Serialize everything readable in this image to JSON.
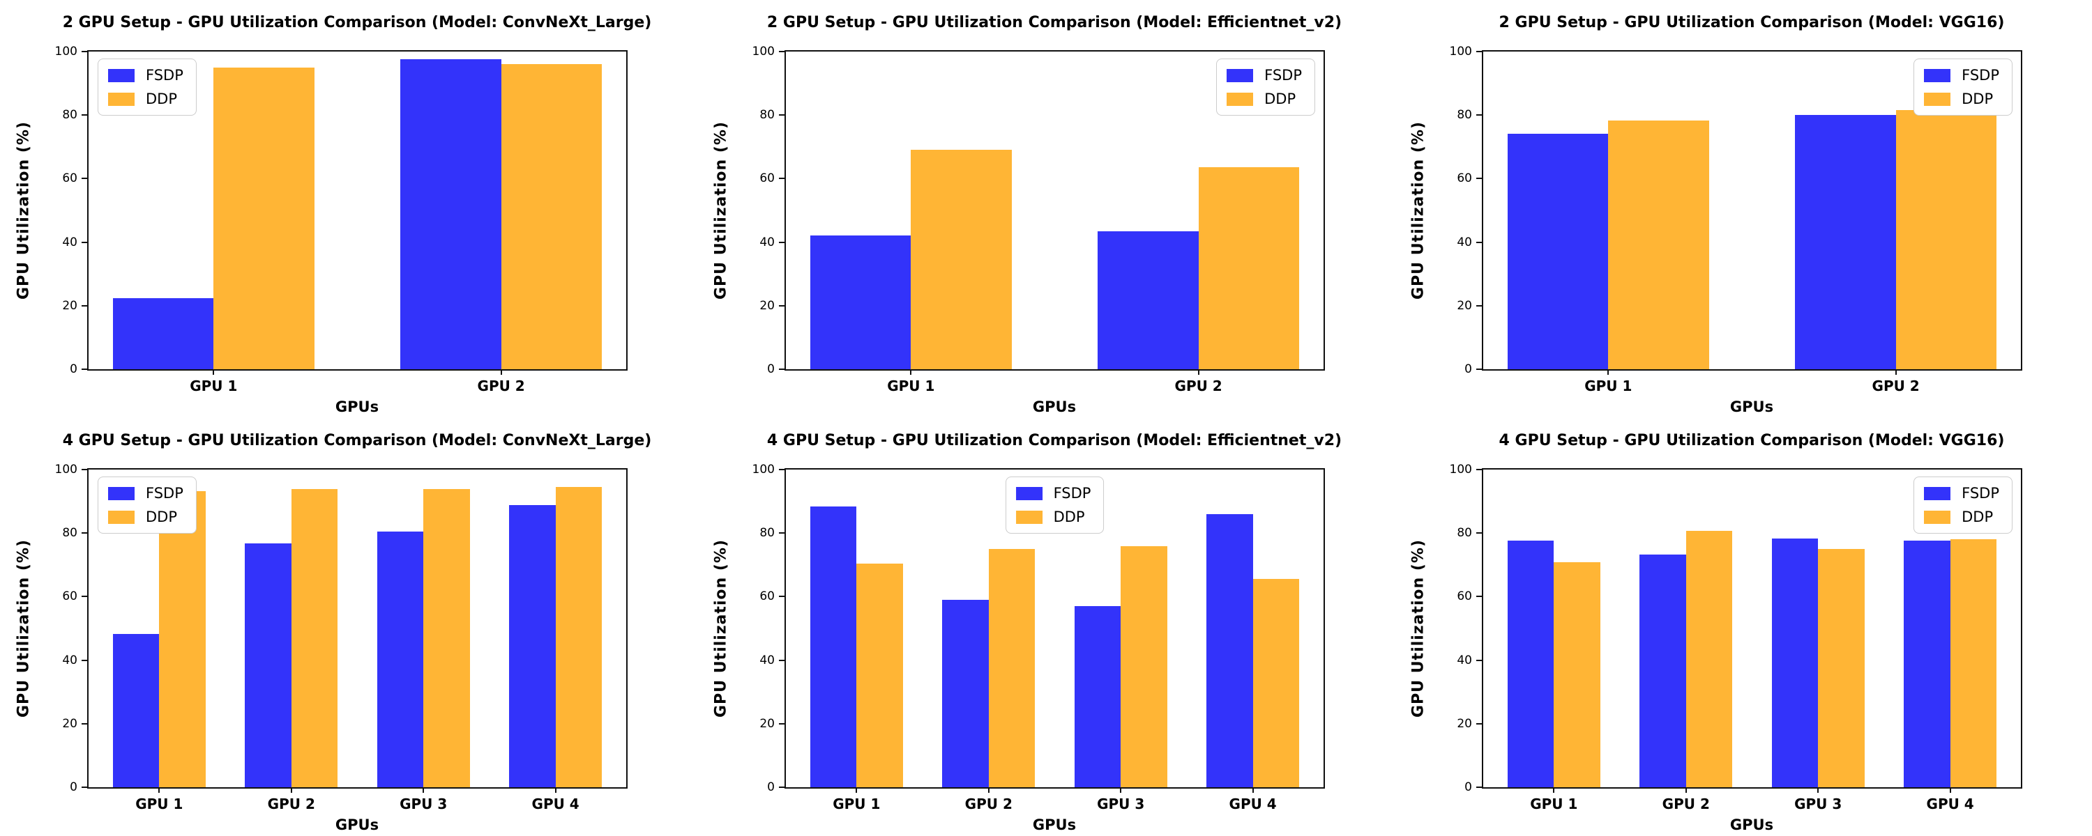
{
  "figure": {
    "background": "#ffffff",
    "axis_color": "#111111",
    "ylabel": "GPU Utilization (%)",
    "xlabel": "GPUs",
    "yticks": [
      0,
      20,
      40,
      60,
      80,
      100
    ],
    "legend_labels": [
      "FSDP",
      "DDP"
    ],
    "series_colors": {
      "FSDP": "#3333FA",
      "DDP": "#FFB535"
    }
  },
  "chart_data": [
    {
      "type": "bar",
      "title": "2 GPU Setup - GPU Utilization Comparison (Model: ConvNeXt_Large)",
      "xlabel": "GPUs",
      "ylabel": "GPU Utilization (%)",
      "ylim": [
        0,
        100
      ],
      "yticks": [
        0,
        20,
        40,
        60,
        80,
        100
      ],
      "grid": false,
      "legend_position": "upper-left",
      "categories": [
        "GPU 1",
        "GPU 2"
      ],
      "series": [
        {
          "name": "FSDP",
          "color": "#3333FA",
          "values": [
            22.3,
            97.7
          ]
        },
        {
          "name": "DDP",
          "color": "#FFB535",
          "values": [
            95.0,
            96.1
          ]
        }
      ]
    },
    {
      "type": "bar",
      "title": "2 GPU Setup - GPU Utilization Comparison (Model: Efficientnet_v2)",
      "xlabel": "GPUs",
      "ylabel": "GPU Utilization (%)",
      "ylim": [
        0,
        100
      ],
      "yticks": [
        0,
        20,
        40,
        60,
        80,
        100
      ],
      "grid": false,
      "legend_position": "upper-right",
      "categories": [
        "GPU 1",
        "GPU 2"
      ],
      "series": [
        {
          "name": "FSDP",
          "color": "#3333FA",
          "values": [
            42.0,
            43.5
          ]
        },
        {
          "name": "DDP",
          "color": "#FFB535",
          "values": [
            69.0,
            63.6
          ]
        }
      ]
    },
    {
      "type": "bar",
      "title": "2 GPU Setup - GPU Utilization Comparison (Model: VGG16)",
      "xlabel": "GPUs",
      "ylabel": "GPU Utilization (%)",
      "ylim": [
        0,
        100
      ],
      "yticks": [
        0,
        20,
        40,
        60,
        80,
        100
      ],
      "grid": false,
      "legend_position": "upper-right",
      "categories": [
        "GPU 1",
        "GPU 2"
      ],
      "series": [
        {
          "name": "FSDP",
          "color": "#3333FA",
          "values": [
            74.2,
            80.1
          ]
        },
        {
          "name": "DDP",
          "color": "#FFB535",
          "values": [
            78.2,
            81.5
          ]
        }
      ]
    },
    {
      "type": "bar",
      "title": "4 GPU Setup - GPU Utilization Comparison (Model: ConvNeXt_Large)",
      "xlabel": "GPUs",
      "ylabel": "GPU Utilization (%)",
      "ylim": [
        0,
        100
      ],
      "yticks": [
        0,
        20,
        40,
        60,
        80,
        100
      ],
      "grid": false,
      "legend_position": "upper-left",
      "categories": [
        "GPU 1",
        "GPU 2",
        "GPU 3",
        "GPU 4"
      ],
      "series": [
        {
          "name": "FSDP",
          "color": "#3333FA",
          "values": [
            48.3,
            76.7,
            80.4,
            88.9
          ]
        },
        {
          "name": "DDP",
          "color": "#FFB535",
          "values": [
            93.1,
            93.9,
            93.9,
            94.6
          ]
        }
      ]
    },
    {
      "type": "bar",
      "title": "4 GPU Setup - GPU Utilization Comparison (Model: Efficientnet_v2)",
      "xlabel": "GPUs",
      "ylabel": "GPU Utilization (%)",
      "ylim": [
        0,
        100
      ],
      "yticks": [
        0,
        20,
        40,
        60,
        80,
        100
      ],
      "grid": false,
      "legend_position": "upper-center",
      "categories": [
        "GPU 1",
        "GPU 2",
        "GPU 3",
        "GPU 4"
      ],
      "series": [
        {
          "name": "FSDP",
          "color": "#3333FA",
          "values": [
            88.3,
            59.1,
            57.1,
            86.0
          ]
        },
        {
          "name": "DDP",
          "color": "#FFB535",
          "values": [
            70.4,
            75.0,
            75.8,
            65.6
          ]
        }
      ]
    },
    {
      "type": "bar",
      "title": "4 GPU Setup - GPU Utilization Comparison (Model: VGG16)",
      "xlabel": "GPUs",
      "ylabel": "GPU Utilization (%)",
      "ylim": [
        0,
        100
      ],
      "yticks": [
        0,
        20,
        40,
        60,
        80,
        100
      ],
      "grid": false,
      "legend_position": "upper-right",
      "categories": [
        "GPU 1",
        "GPU 2",
        "GPU 3",
        "GPU 4"
      ],
      "series": [
        {
          "name": "FSDP",
          "color": "#3333FA",
          "values": [
            77.6,
            73.2,
            78.4,
            77.6
          ]
        },
        {
          "name": "DDP",
          "color": "#FFB535",
          "values": [
            70.9,
            80.6,
            75.0,
            78.1
          ]
        }
      ]
    }
  ]
}
